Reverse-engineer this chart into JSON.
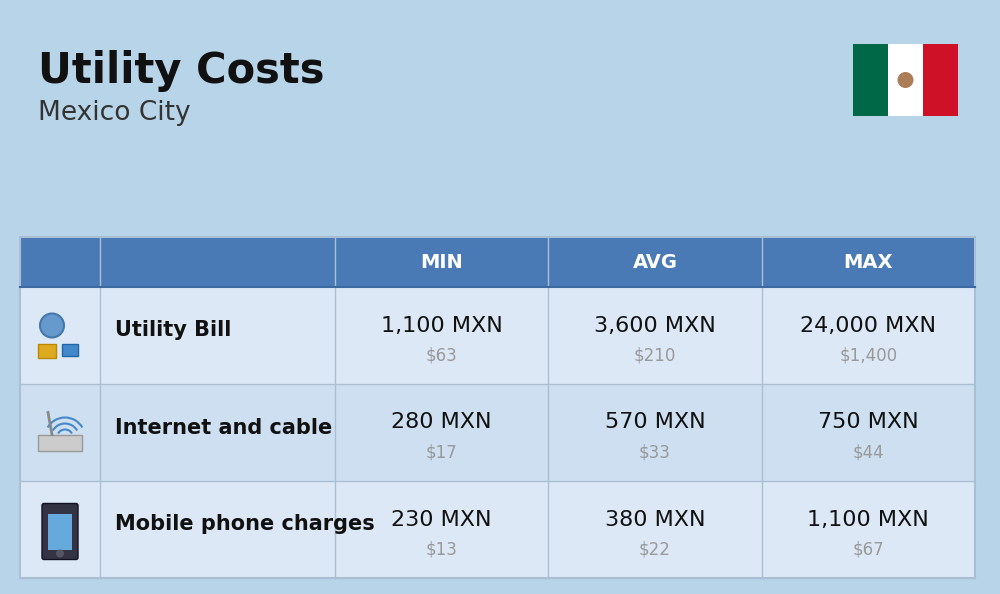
{
  "title": "Utility Costs",
  "subtitle": "Mexico City",
  "background_color": "#b8d4e8",
  "header_bg_color": "#4a7ab5",
  "header_text_color": "#ffffff",
  "row_bg_colors": [
    "#dce8f5",
    "#cddff0"
  ],
  "col_headers": [
    "MIN",
    "AVG",
    "MAX"
  ],
  "rows": [
    {
      "label": "Utility Bill",
      "values_mxn": [
        "1,100 MXN",
        "3,600 MXN",
        "24,000 MXN"
      ],
      "values_usd": [
        "$63",
        "$210",
        "$1,400"
      ]
    },
    {
      "label": "Internet and cable",
      "values_mxn": [
        "280 MXN",
        "570 MXN",
        "750 MXN"
      ],
      "values_usd": [
        "$17",
        "$33",
        "$44"
      ]
    },
    {
      "label": "Mobile phone charges",
      "values_mxn": [
        "230 MXN",
        "380 MXN",
        "1,100 MXN"
      ],
      "values_usd": [
        "$13",
        "$22",
        "$67"
      ]
    }
  ],
  "title_fontsize": 30,
  "subtitle_fontsize": 19,
  "header_fontsize": 14,
  "label_fontsize": 15,
  "mxn_fontsize": 16,
  "usd_fontsize": 12,
  "title_color": "#111111",
  "subtitle_color": "#333333",
  "label_color": "#111111",
  "mxn_color": "#111111",
  "usd_color": "#999999",
  "line_color": "#aabfd4",
  "flag_green": "#006847",
  "flag_white": "#ffffff",
  "flag_red": "#ce1126"
}
